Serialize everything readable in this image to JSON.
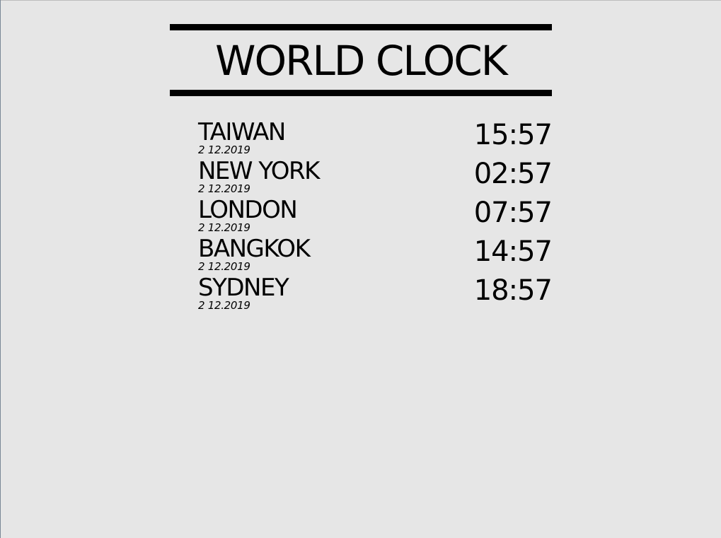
{
  "title": "WORLD CLOCK",
  "cities": [
    {
      "name": "TAIWAN",
      "date": "2 12.2019",
      "time": "15:57"
    },
    {
      "name": "NEW YORK",
      "date": "2 12.2019",
      "time": "02:57"
    },
    {
      "name": "LONDON",
      "date": "2 12.2019",
      "time": "07:57"
    },
    {
      "name": "BANGKOK",
      "date": "2 12.2019",
      "time": "14:57"
    },
    {
      "name": "SYDNEY",
      "date": "2 12.2019",
      "time": "18:57"
    }
  ]
}
